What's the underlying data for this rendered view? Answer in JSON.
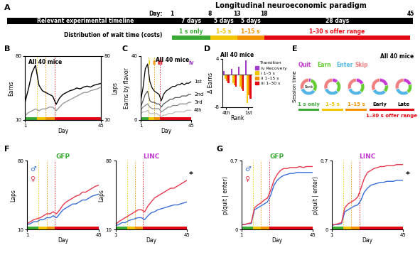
{
  "timeline": {
    "panel": "A",
    "title": "Longitudinal neuroeconomic paradigm",
    "day_label": "Day:",
    "days": [
      1,
      8,
      13,
      18,
      45
    ],
    "bar_label": "Relevant experimental timeline",
    "row_label": "Distribution of wait time (costs)",
    "phases": [
      {
        "label": "1 s only",
        "start": 1,
        "end": 8,
        "duration": "7 days",
        "color": "#3aaa35"
      },
      {
        "label": "1–5 s",
        "start": 8,
        "end": 13,
        "duration": "5 days",
        "color": "#f2c500"
      },
      {
        "label": "1–15 s",
        "start": 13,
        "end": 18,
        "duration": "5 days",
        "color": "#f39200"
      },
      {
        "label": "1–30 s offer range",
        "start": 18,
        "end": 45,
        "duration": "28 days",
        "color": "#e30613"
      }
    ]
  },
  "chart_data": [
    {
      "panel": "B",
      "type": "line",
      "title": "All 40 mice",
      "x_label": "Day",
      "y_label": "Earns",
      "y2_label": "Laps",
      "x": [
        1,
        3,
        5,
        7,
        9,
        11,
        13,
        15,
        17,
        19,
        21,
        23,
        25,
        27,
        29,
        31,
        33,
        35,
        37,
        39,
        41,
        43,
        45
      ],
      "xlim": [
        1,
        45
      ],
      "xticks": [
        1,
        45
      ],
      "ylim": [
        10,
        80
      ],
      "yticks": [
        10,
        80
      ],
      "y2lim": [
        10,
        80
      ],
      "y2ticks": [
        10,
        80
      ],
      "series": [
        {
          "color": "#000000",
          "values": [
            30,
            45,
            62,
            70,
            48,
            42,
            40,
            38,
            36,
            27,
            34,
            38,
            40,
            42,
            43,
            45,
            44,
            46,
            47,
            46,
            48,
            49,
            50
          ]
        },
        {
          "color": "#9a9a9a",
          "axis": "y2",
          "values": [
            15,
            18,
            20,
            22,
            20,
            22,
            22,
            24,
            24,
            20,
            24,
            28,
            30,
            32,
            34,
            36,
            38,
            40,
            40,
            42,
            43,
            44,
            46
          ]
        }
      ]
    },
    {
      "panel": "C",
      "type": "line",
      "title": "All 40 mice",
      "x_label": "Day",
      "y_label": "Earns by flavor",
      "x": [
        1,
        3,
        5,
        7,
        9,
        11,
        13,
        15,
        17,
        19,
        21,
        23,
        25,
        27,
        29,
        31,
        33,
        35,
        37,
        39,
        41,
        43,
        45
      ],
      "xlim": [
        1,
        45
      ],
      "xticks": [
        1,
        45
      ],
      "ylim": [
        0,
        40
      ],
      "yticks": [
        0,
        40
      ],
      "series": [
        {
          "name": "1st",
          "color": "#000000",
          "values": [
            12,
            20,
            32,
            35,
            24,
            20,
            18,
            17,
            16,
            12,
            16,
            18,
            19,
            20,
            21,
            21,
            22,
            22,
            23,
            22,
            23,
            23,
            24
          ]
        },
        {
          "name": "2nd",
          "color": "#555555",
          "values": [
            8,
            12,
            16,
            18,
            12,
            11,
            11,
            10,
            10,
            8,
            10,
            11,
            12,
            13,
            13,
            14,
            14,
            14,
            15,
            15,
            15,
            16,
            16
          ]
        },
        {
          "name": "3rd",
          "color": "#888888",
          "values": [
            6,
            8,
            9,
            10,
            8,
            7,
            7,
            7,
            7,
            5,
            6,
            7,
            8,
            8,
            9,
            9,
            9,
            10,
            10,
            10,
            10,
            11,
            11
          ]
        },
        {
          "name": "4th",
          "color": "#bbbbbb",
          "values": [
            4,
            5,
            5,
            6,
            4,
            4,
            4,
            4,
            3,
            2,
            3,
            3,
            4,
            4,
            4,
            5,
            5,
            5,
            5,
            5,
            6,
            6,
            6
          ]
        }
      ],
      "transitions": [
        {
          "text": "i",
          "day": 8,
          "color": "#f2c500"
        },
        {
          "text": "ii",
          "day": 13,
          "color": "#f39200"
        },
        {
          "text": "iii",
          "day": 18,
          "color": "#e30613"
        },
        {
          "text": "iv",
          "day": 45,
          "color": "#a03cc8"
        }
      ]
    },
    {
      "panel": "D",
      "type": "bar",
      "title": "All 40 mice",
      "x_label": "Rank",
      "y_label": "Δ Earns",
      "categories": [
        "4th",
        null,
        null,
        "1st"
      ],
      "ylim": [
        -8,
        4
      ],
      "yticks": [
        -8,
        4
      ],
      "legend": "upper left",
      "legend_title": "Transition",
      "series": [
        {
          "name": "iv Recovery",
          "color": "#a03cc8",
          "values": [
            1,
            1.5,
            2,
            3.5
          ]
        },
        {
          "name": "i 1–5 s",
          "color": "#f2c500",
          "values": [
            -1,
            -2,
            -3,
            -7
          ]
        },
        {
          "name": "ii 1–15 s",
          "color": "#f39200",
          "values": [
            -1.5,
            -2.5,
            -3.5,
            -5
          ]
        },
        {
          "name": "iii 1–30 s",
          "color": "#e30613",
          "values": [
            -2,
            -3,
            -4,
            -6
          ]
        }
      ]
    },
    {
      "panel": "E",
      "type": "donut",
      "title": "All 40 mice",
      "y_label": "Session time",
      "center_label": "Rank",
      "segments": [
        {
          "name": "Quit",
          "color": "#c63ad6"
        },
        {
          "name": "Earn",
          "color": "#66cc33"
        },
        {
          "name": "Enter",
          "color": "#55b6e6"
        },
        {
          "name": "Skip",
          "color": "#f08080"
        }
      ],
      "categories": [
        "1 s only",
        "1–5 s",
        "1–15 s",
        "Early",
        "Late"
      ],
      "category_colors": [
        "#3aaa35",
        "#f2c500",
        "#f39200",
        "#000000",
        "#000000"
      ],
      "values": [
        [
          5,
          30,
          35,
          30
        ],
        [
          12,
          25,
          33,
          30
        ],
        [
          18,
          20,
          32,
          30
        ],
        [
          22,
          15,
          30,
          33
        ],
        [
          20,
          20,
          30,
          30
        ]
      ],
      "group_label": "1–30 s offer range",
      "group_color": "#e30613"
    },
    {
      "panel": "F",
      "type": "line",
      "x_label": "Day",
      "y_label": "Laps",
      "x": [
        1,
        3,
        5,
        7,
        9,
        11,
        13,
        15,
        17,
        19,
        21,
        23,
        25,
        27,
        29,
        31,
        33,
        35,
        37,
        39,
        41,
        43,
        45
      ],
      "xlim": [
        1,
        45
      ],
      "xticks": [
        1,
        45
      ],
      "ylim": [
        10,
        80
      ],
      "yticks": [
        10,
        80
      ],
      "groups": [
        {
          "title": "GFP",
          "color": "#3aaa35",
          "series": [
            {
              "name": "♂",
              "color": "#3a6fd8",
              "values": [
                15,
                16,
                18,
                18,
                20,
                20,
                22,
                22,
                24,
                22,
                26,
                30,
                32,
                34,
                36,
                36,
                38,
                40,
                40,
                42,
                44,
                45,
                46
              ]
            },
            {
              "name": "♀",
              "color": "#e8384f",
              "values": [
                16,
                18,
                20,
                21,
                22,
                24,
                26,
                26,
                28,
                26,
                30,
                35,
                38,
                40,
                42,
                44,
                45,
                48,
                48,
                50,
                52,
                54,
                55
              ]
            }
          ]
        },
        {
          "title": "LINC",
          "color": "#c63ad6",
          "significance": "*",
          "series": [
            {
              "name": "♂",
              "color": "#3a6fd8",
              "values": [
                14,
                15,
                17,
                17,
                19,
                20,
                21,
                22,
                22,
                20,
                24,
                27,
                28,
                30,
                31,
                32,
                33,
                34,
                35,
                35,
                36,
                37,
                38
              ]
            },
            {
              "name": "♀",
              "color": "#e8384f",
              "values": [
                15,
                18,
                20,
                22,
                24,
                26,
                28,
                30,
                30,
                28,
                34,
                38,
                42,
                44,
                46,
                48,
                50,
                52,
                52,
                54,
                56,
                58,
                60
              ]
            }
          ]
        }
      ]
    },
    {
      "panel": "G",
      "type": "line",
      "x_label": "Day",
      "y_label": "p(quit | enter)",
      "x": [
        1,
        3,
        5,
        7,
        9,
        11,
        13,
        15,
        17,
        19,
        21,
        23,
        25,
        27,
        29,
        31,
        33,
        35,
        37,
        39,
        41,
        43,
        45
      ],
      "xlim": [
        1,
        45
      ],
      "xticks": [
        1,
        45
      ],
      "ylim": [
        0,
        0.7
      ],
      "yticks": [
        0,
        0.7
      ],
      "groups": [
        {
          "title": "GFP",
          "color": "#3aaa35",
          "series": [
            {
              "name": "♂",
              "color": "#3a6fd8",
              "values": [
                0.05,
                0.05,
                0.06,
                0.06,
                0.2,
                0.22,
                0.24,
                0.26,
                0.28,
                0.35,
                0.45,
                0.5,
                0.53,
                0.55,
                0.56,
                0.57,
                0.57,
                0.58,
                0.58,
                0.58,
                0.58,
                0.58,
                0.58
              ]
            },
            {
              "name": "♀",
              "color": "#e8384f",
              "values": [
                0.05,
                0.05,
                0.06,
                0.07,
                0.22,
                0.25,
                0.27,
                0.3,
                0.32,
                0.4,
                0.5,
                0.56,
                0.6,
                0.62,
                0.62,
                0.63,
                0.63,
                0.63,
                0.64,
                0.63,
                0.64,
                0.64,
                0.64
              ]
            }
          ]
        },
        {
          "title": "LINC",
          "color": "#c63ad6",
          "significance": "*",
          "series": [
            {
              "name": "♂",
              "color": "#3a6fd8",
              "values": [
                0.04,
                0.05,
                0.05,
                0.06,
                0.18,
                0.2,
                0.22,
                0.24,
                0.25,
                0.3,
                0.38,
                0.42,
                0.45,
                0.46,
                0.47,
                0.48,
                0.48,
                0.49,
                0.49,
                0.49,
                0.5,
                0.5,
                0.5
              ]
            },
            {
              "name": "♀",
              "color": "#e8384f",
              "values": [
                0.05,
                0.05,
                0.06,
                0.07,
                0.22,
                0.26,
                0.28,
                0.3,
                0.33,
                0.42,
                0.52,
                0.58,
                0.6,
                0.62,
                0.63,
                0.64,
                0.64,
                0.65,
                0.65,
                0.65,
                0.66,
                0.66,
                0.66
              ]
            }
          ]
        }
      ]
    }
  ]
}
